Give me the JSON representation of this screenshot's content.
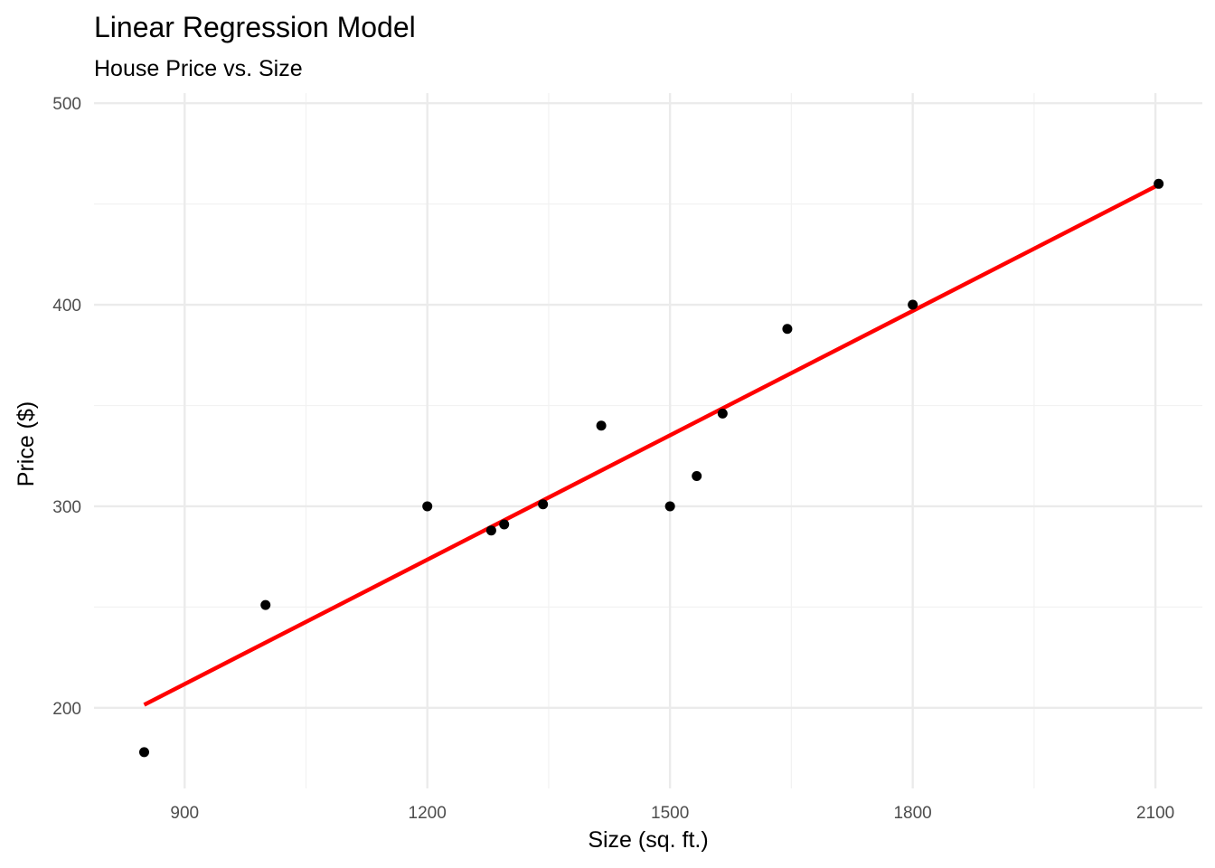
{
  "chart_data": {
    "type": "scatter",
    "title": "Linear Regression Model",
    "subtitle": "House Price vs. Size",
    "xlabel": "Size (sq. ft.)",
    "ylabel": "Price ($)",
    "xlim": [
      788,
      2158
    ],
    "ylim": [
      160,
      505
    ],
    "x_ticks": [
      900,
      1200,
      1500,
      1800,
      2100
    ],
    "x_tick_labels": [
      "900",
      "1200",
      "1500",
      "1800",
      "2100"
    ],
    "y_ticks": [
      200,
      300,
      400,
      500
    ],
    "y_tick_labels": [
      "200",
      "300",
      "400",
      "500"
    ],
    "grid": true,
    "legend": "none",
    "series": [
      {
        "kind": "points",
        "color": "#000000",
        "points": [
          {
            "x": 850,
            "y": 178
          },
          {
            "x": 1000,
            "y": 251
          },
          {
            "x": 1200,
            "y": 300
          },
          {
            "x": 1279,
            "y": 288
          },
          {
            "x": 1295,
            "y": 291
          },
          {
            "x": 1343,
            "y": 301
          },
          {
            "x": 1415,
            "y": 340
          },
          {
            "x": 1500,
            "y": 300
          },
          {
            "x": 1533,
            "y": 315
          },
          {
            "x": 1565,
            "y": 346
          },
          {
            "x": 1645,
            "y": 388
          },
          {
            "x": 1800,
            "y": 400
          },
          {
            "x": 2104,
            "y": 460
          }
        ]
      },
      {
        "kind": "regression-line",
        "color": "#ff0000",
        "points": [
          {
            "x": 850,
            "y": 201.5
          },
          {
            "x": 2104,
            "y": 459.5
          }
        ]
      }
    ]
  }
}
